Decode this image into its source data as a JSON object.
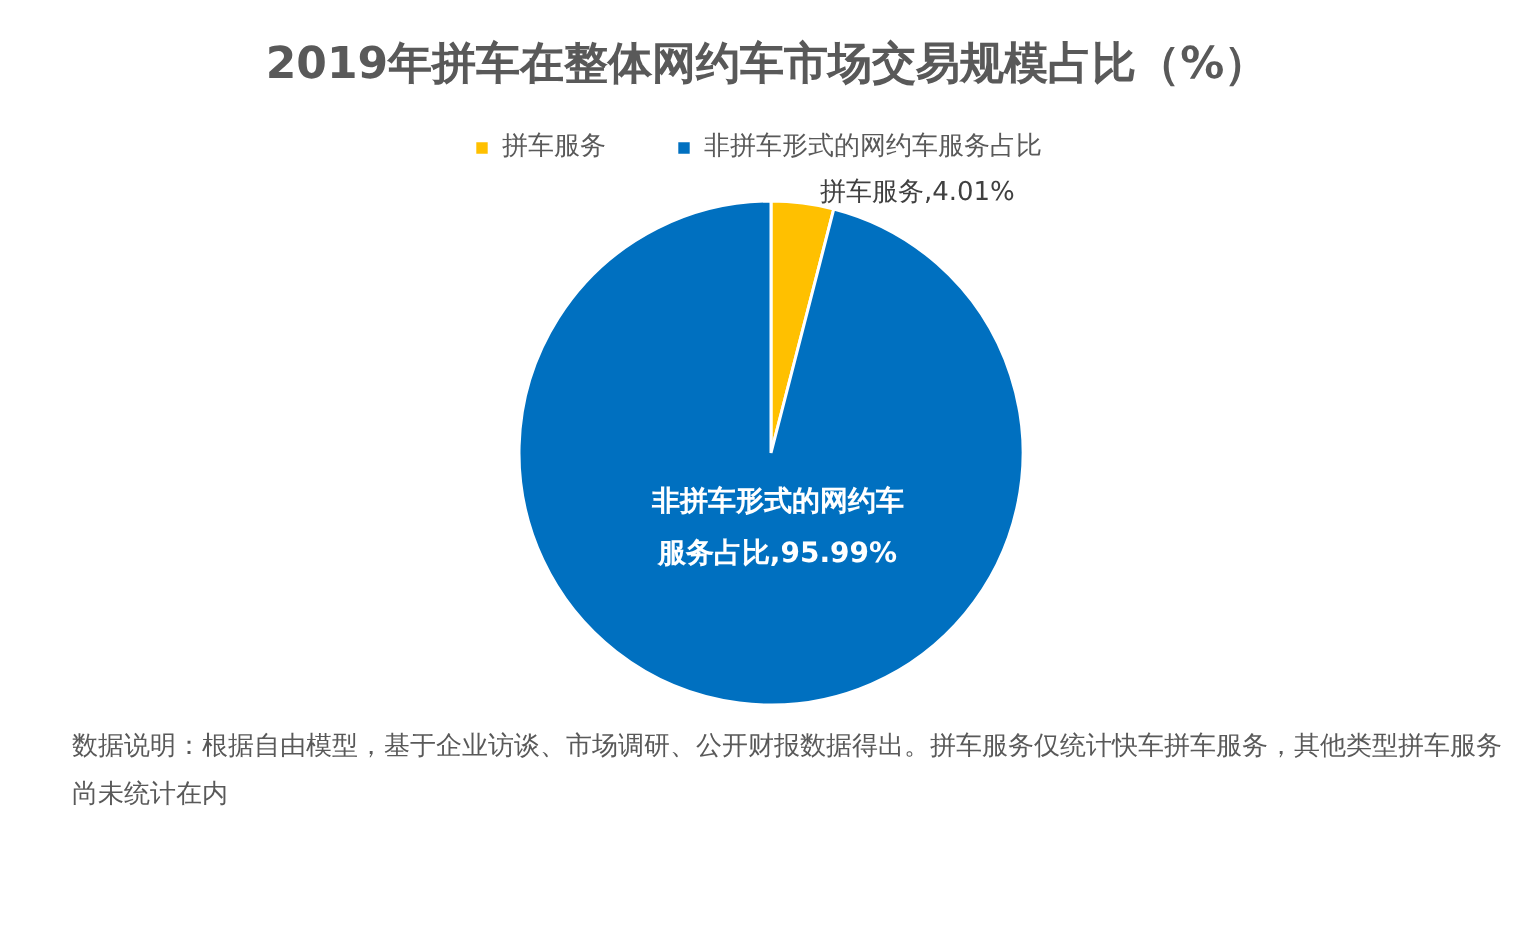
{
  "chart_data": {
    "type": "pie",
    "title": "2019年拼车在整体网约车市场交易规模占比（%）",
    "categories": [
      "拼车服务",
      "非拼车形式的网约车服务占比"
    ],
    "values": [
      4.01,
      95.99
    ],
    "colors": [
      "#ffc000",
      "#0070c0"
    ],
    "value_labels": [
      "拼车服务,4.01%",
      "非拼车形式的网约车服务占比,95.99%"
    ],
    "legend": "top",
    "annotations": [
      "数据说明：根据自由模型，基于企业访谈、市场调研、公开财报数据得出。拼车服务仅统计快车拼车服务，其他类型拼车服务尚未统计在内"
    ]
  }
}
